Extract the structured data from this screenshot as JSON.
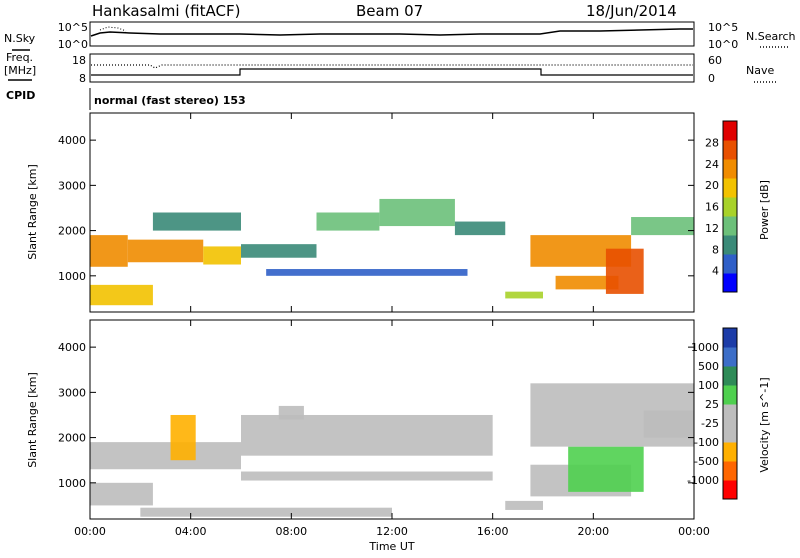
{
  "header": {
    "station": "Hankasalmi (fitACF)",
    "beam": "Beam 07",
    "date": "18/Jun/2014"
  },
  "top_panels": {
    "nsky_label": "N.Sky",
    "nsky_ticks": [
      "10^5",
      "10^0"
    ],
    "nsearch_label": "N.Search",
    "nsearch_ticks": [
      "10^5",
      "10^0"
    ],
    "freq_label_1": "Freq.",
    "freq_label_2": "[MHz]",
    "freq_ticks": [
      "18",
      "8"
    ],
    "nave_label": "Nave",
    "nave_ticks": [
      "60",
      "0"
    ],
    "cpid_label": "CPID",
    "cpid_text": "normal (fast stereo) 153"
  },
  "colors": {
    "power_scale": [
      "#0000ff",
      "#2f5fc8",
      "#3a8a78",
      "#6cc07a",
      "#a8d22a",
      "#f2c200",
      "#f08c00",
      "#e85000",
      "#e00000"
    ],
    "velocity_scale": [
      "#ff0000",
      "#ff6600",
      "#ffb000",
      "#bdbdbd",
      "#bdbdbd",
      "#4fd04f",
      "#2e8b57",
      "#3c6ec8",
      "#1c3ca8"
    ]
  },
  "chart_data": [
    {
      "type": "heatmap",
      "quantity": "Power",
      "xlabel": "",
      "ylabel": "Slant Range [km]",
      "colorbar_label": "Power [dB]",
      "colorbar_ticks": [
        "28",
        "24",
        "20",
        "16",
        "12",
        "8",
        "4"
      ],
      "colorbar_range": [
        0,
        30
      ],
      "x_ticks": [
        "00:00",
        "04:00",
        "08:00",
        "12:00",
        "16:00",
        "20:00",
        "00:00"
      ],
      "xlim": [
        0,
        24
      ],
      "y_ticks": [
        "4000",
        "3000",
        "2000",
        "1000"
      ],
      "ylim": [
        200,
        4600
      ],
      "bands": [
        {
          "t0": 0,
          "t1": 1.5,
          "r0": 1200,
          "r1": 1900,
          "level": 20
        },
        {
          "t0": 1.5,
          "t1": 4.5,
          "r0": 1300,
          "r1": 1800,
          "level": 22
        },
        {
          "t0": 4.5,
          "t1": 6,
          "r0": 1250,
          "r1": 1650,
          "level": 18
        },
        {
          "t0": 0,
          "t1": 2.5,
          "r0": 350,
          "r1": 800,
          "level": 18
        },
        {
          "t0": 2.5,
          "t1": 6,
          "r0": 2000,
          "r1": 2400,
          "level": 8
        },
        {
          "t0": 6,
          "t1": 9,
          "r0": 1400,
          "r1": 1700,
          "level": 8
        },
        {
          "t0": 7,
          "t1": 15,
          "r0": 1000,
          "r1": 1150,
          "level": 6
        },
        {
          "t0": 9,
          "t1": 11.5,
          "r0": 2000,
          "r1": 2400,
          "level": 10
        },
        {
          "t0": 11.5,
          "t1": 14.5,
          "r0": 2100,
          "r1": 2700,
          "level": 12
        },
        {
          "t0": 14.5,
          "t1": 16.5,
          "r0": 1900,
          "r1": 2200,
          "level": 8
        },
        {
          "t0": 16.5,
          "t1": 18,
          "r0": 500,
          "r1": 650,
          "level": 14
        },
        {
          "t0": 17.5,
          "t1": 21.5,
          "r0": 1200,
          "r1": 1900,
          "level": 22
        },
        {
          "t0": 18.5,
          "t1": 21,
          "r0": 700,
          "r1": 1000,
          "level": 20
        },
        {
          "t0": 20.5,
          "t1": 22,
          "r0": 600,
          "r1": 1600,
          "level": 26
        },
        {
          "t0": 21.5,
          "t1": 24,
          "r0": 1900,
          "r1": 2300,
          "level": 12
        }
      ]
    },
    {
      "type": "heatmap",
      "quantity": "Velocity",
      "xlabel": "Time UT",
      "ylabel": "Slant Range [km]",
      "colorbar_label": "Velocity [m s^-1]",
      "colorbar_ticks": [
        "1000",
        "500",
        "100",
        "25",
        "-25",
        "-100",
        "-500",
        "-1000"
      ],
      "colorbar_range": [
        -1000,
        1000
      ],
      "x_ticks": [
        "00:00",
        "04:00",
        "08:00",
        "12:00",
        "16:00",
        "20:00",
        "00:00"
      ],
      "xlim": [
        0,
        24
      ],
      "y_ticks": [
        "4000",
        "3000",
        "2000",
        "1000"
      ],
      "ylim": [
        200,
        4600
      ],
      "bands": [
        {
          "t0": 0,
          "t1": 6,
          "r0": 1300,
          "r1": 1900,
          "level": 0
        },
        {
          "t0": 0,
          "t1": 2.5,
          "r0": 500,
          "r1": 1000,
          "level": -300
        },
        {
          "t0": 3.2,
          "t1": 4.2,
          "r0": 1500,
          "r1": 2500,
          "level": -400
        },
        {
          "t0": 6,
          "t1": 16,
          "r0": 1050,
          "r1": 1250,
          "level": 0
        },
        {
          "t0": 6,
          "t1": 16,
          "r0": 1600,
          "r1": 2500,
          "level": 0
        },
        {
          "t0": 7.5,
          "t1": 8.5,
          "r0": 2400,
          "r1": 2700,
          "level": -300
        },
        {
          "t0": 2,
          "t1": 12,
          "r0": 250,
          "r1": 450,
          "level": 80
        },
        {
          "t0": 16.5,
          "t1": 18,
          "r0": 400,
          "r1": 600,
          "level": 70
        },
        {
          "t0": 17.5,
          "t1": 21.5,
          "r0": 700,
          "r1": 1400,
          "level": -200
        },
        {
          "t0": 19,
          "t1": 22,
          "r0": 800,
          "r1": 1800,
          "level": 200
        },
        {
          "t0": 17.5,
          "t1": 24,
          "r0": 1800,
          "r1": 3200,
          "level": 0
        },
        {
          "t0": 22,
          "t1": 24,
          "r0": 2000,
          "r1": 2600,
          "level": -100
        }
      ]
    }
  ]
}
